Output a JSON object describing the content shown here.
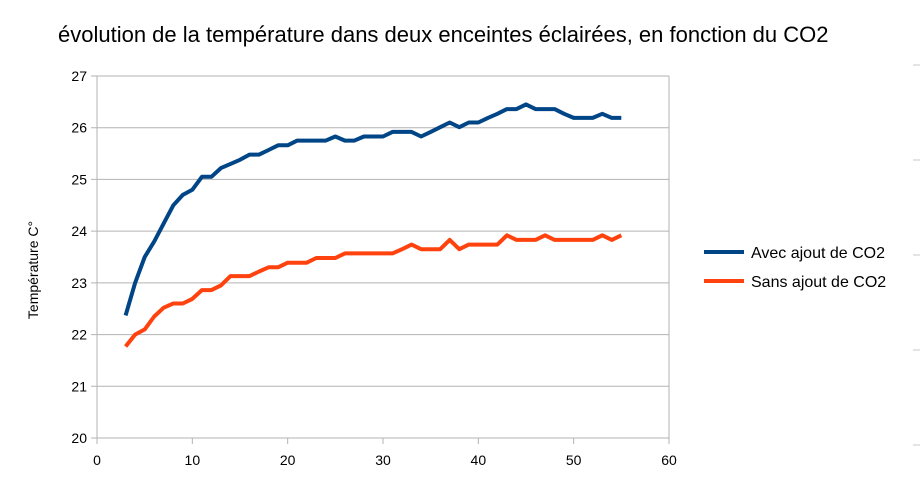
{
  "chart_data": {
    "type": "line",
    "title": "évolution de la température dans deux enceintes éclairées, en fonction du CO2",
    "xlabel": "",
    "ylabel": "Température C°",
    "xlim": [
      0,
      60
    ],
    "ylim": [
      20,
      27
    ],
    "x_ticks": [
      "0",
      "10",
      "20",
      "30",
      "40",
      "50",
      "60"
    ],
    "y_ticks": [
      "20",
      "21",
      "22",
      "23",
      "24",
      "25",
      "26",
      "27"
    ],
    "grid": "horizontal",
    "legend_position": "right",
    "series": [
      {
        "name": "Avec ajout de CO2",
        "color": "#004586",
        "x": [
          3,
          4,
          5,
          6,
          7,
          8,
          9,
          10,
          11,
          12,
          13,
          14,
          15,
          16,
          17,
          18,
          19,
          20,
          21,
          22,
          23,
          24,
          25,
          26,
          27,
          28,
          29,
          30,
          31,
          32,
          33,
          34,
          35,
          36,
          37,
          38,
          39,
          40,
          41,
          42,
          43,
          44,
          45,
          46,
          47,
          48,
          49,
          50,
          51,
          52,
          53,
          54,
          55
        ],
        "values": [
          22.37,
          23.0,
          23.5,
          23.8,
          24.15,
          24.5,
          24.7,
          24.8,
          25.05,
          25.05,
          25.22,
          25.3,
          25.38,
          25.48,
          25.48,
          25.57,
          25.66,
          25.66,
          25.75,
          25.75,
          25.75,
          25.75,
          25.83,
          25.75,
          25.75,
          25.83,
          25.83,
          25.83,
          25.92,
          25.92,
          25.92,
          25.83,
          25.92,
          26.01,
          26.1,
          26.01,
          26.1,
          26.1,
          26.19,
          26.27,
          26.36,
          26.36,
          26.45,
          26.36,
          26.36,
          26.36,
          26.27,
          26.19,
          26.19,
          26.19,
          26.27,
          26.19,
          26.19
        ]
      },
      {
        "name": "Sans ajout de CO2",
        "color": "#ff420e",
        "x": [
          3,
          4,
          5,
          6,
          7,
          8,
          9,
          10,
          11,
          12,
          13,
          14,
          15,
          16,
          17,
          18,
          19,
          20,
          21,
          22,
          23,
          24,
          25,
          26,
          27,
          28,
          29,
          30,
          31,
          32,
          33,
          34,
          35,
          36,
          37,
          38,
          39,
          40,
          41,
          42,
          43,
          44,
          45,
          46,
          47,
          48,
          49,
          50,
          51,
          52,
          53,
          54,
          55
        ],
        "values": [
          21.77,
          22.0,
          22.1,
          22.35,
          22.52,
          22.6,
          22.6,
          22.69,
          22.86,
          22.86,
          22.95,
          23.13,
          23.13,
          23.13,
          23.22,
          23.3,
          23.3,
          23.39,
          23.39,
          23.39,
          23.48,
          23.48,
          23.48,
          23.57,
          23.57,
          23.57,
          23.57,
          23.57,
          23.57,
          23.65,
          23.74,
          23.65,
          23.65,
          23.65,
          23.83,
          23.65,
          23.74,
          23.74,
          23.74,
          23.74,
          23.92,
          23.83,
          23.83,
          23.83,
          23.92,
          23.83,
          23.83,
          23.83,
          23.83,
          23.83,
          23.92,
          23.83,
          23.92
        ]
      }
    ]
  }
}
